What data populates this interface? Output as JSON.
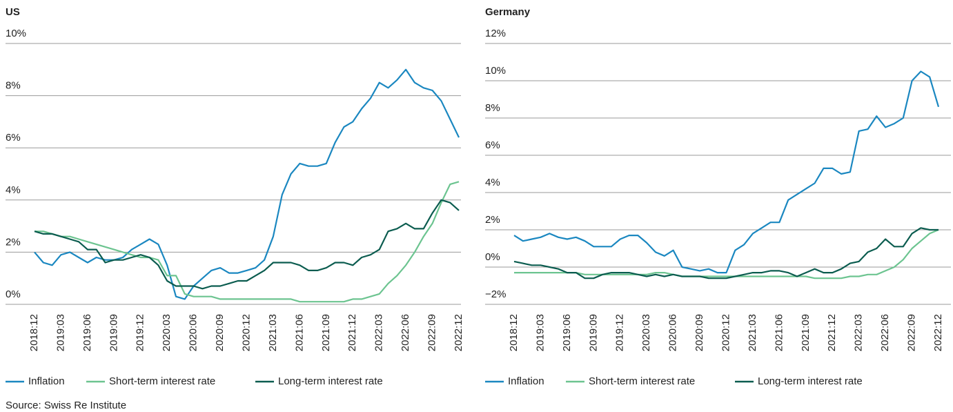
{
  "chart_data": [
    {
      "type": "line",
      "title": "US",
      "categories": [
        "2018:12",
        null,
        null,
        "2019:03",
        null,
        null,
        "2019:06",
        null,
        null,
        "2019:09",
        null,
        null,
        "2019:12",
        null,
        null,
        "2020:03",
        null,
        null,
        "2020:06",
        null,
        null,
        "2020:09",
        null,
        null,
        "2020:12",
        null,
        null,
        "2021:03",
        null,
        null,
        "2021:06",
        null,
        null,
        "2021:09",
        null,
        null,
        "2021:12",
        null,
        null,
        "2022:03",
        null,
        null,
        "2022:06",
        null,
        null,
        "2022:09",
        null,
        null,
        "2022:12"
      ],
      "ylim": [
        0,
        10
      ],
      "yticks": [
        {
          "value": 0,
          "label": "0%"
        },
        {
          "value": 2,
          "label": "2%"
        },
        {
          "value": 4,
          "label": "4%"
        },
        {
          "value": 6,
          "label": "6%"
        },
        {
          "value": 8,
          "label": "8%"
        },
        {
          "value": 10,
          "label": "10%"
        }
      ],
      "grid": true,
      "series": [
        {
          "name": "Inflation",
          "color": "#1a87c0",
          "values": [
            2.0,
            1.6,
            1.5,
            1.9,
            2.0,
            1.8,
            1.6,
            1.8,
            1.7,
            1.7,
            1.8,
            2.1,
            2.3,
            2.5,
            2.3,
            1.5,
            0.3,
            0.2,
            0.7,
            1.0,
            1.3,
            1.4,
            1.2,
            1.2,
            1.3,
            1.4,
            1.7,
            2.6,
            4.2,
            5.0,
            5.4,
            5.3,
            5.3,
            5.4,
            6.2,
            6.8,
            7.0,
            7.5,
            7.9,
            8.5,
            8.3,
            8.6,
            9.0,
            8.5,
            8.3,
            8.2,
            7.8,
            7.1,
            6.4
          ]
        },
        {
          "name": "Short-term interest rate",
          "color": "#6cc490",
          "values": [
            2.8,
            2.8,
            2.7,
            2.6,
            2.6,
            2.5,
            2.4,
            2.3,
            2.2,
            2.1,
            2.0,
            1.9,
            1.8,
            1.8,
            1.7,
            1.1,
            1.1,
            0.4,
            0.3,
            0.3,
            0.3,
            0.2,
            0.2,
            0.2,
            0.2,
            0.2,
            0.2,
            0.2,
            0.2,
            0.2,
            0.1,
            0.1,
            0.1,
            0.1,
            0.1,
            0.1,
            0.2,
            0.2,
            0.3,
            0.4,
            0.8,
            1.1,
            1.5,
            2.0,
            2.6,
            3.1,
            3.9,
            4.6,
            4.7
          ]
        },
        {
          "name": "Long-term interest rate",
          "color": "#0b5c4f",
          "values": [
            2.8,
            2.7,
            2.7,
            2.6,
            2.5,
            2.4,
            2.1,
            2.1,
            1.6,
            1.7,
            1.7,
            1.8,
            1.9,
            1.8,
            1.5,
            0.9,
            0.7,
            0.7,
            0.7,
            0.6,
            0.7,
            0.7,
            0.8,
            0.9,
            0.9,
            1.1,
            1.3,
            1.6,
            1.6,
            1.6,
            1.5,
            1.3,
            1.3,
            1.4,
            1.6,
            1.6,
            1.5,
            1.8,
            1.9,
            2.1,
            2.8,
            2.9,
            3.1,
            2.9,
            2.9,
            3.5,
            4.0,
            3.9,
            3.6
          ]
        }
      ]
    },
    {
      "type": "line",
      "title": "Germany",
      "categories": [
        "2018:12",
        null,
        null,
        "2019:03",
        null,
        null,
        "2019:06",
        null,
        null,
        "2019:09",
        null,
        null,
        "2019:12",
        null,
        null,
        "2020:03",
        null,
        null,
        "2020:06",
        null,
        null,
        "2020:09",
        null,
        null,
        "2020:12",
        null,
        null,
        "2021:03",
        null,
        null,
        "2021:06",
        null,
        null,
        "2021:09",
        null,
        null,
        "2021:12",
        null,
        null,
        "2022:03",
        null,
        null,
        "2022:06",
        null,
        null,
        "2022:09",
        null,
        null,
        "2022:12"
      ],
      "ylim": [
        -2,
        12
      ],
      "yticks": [
        {
          "value": -2,
          "label": "−2%"
        },
        {
          "value": 0,
          "label": "0%"
        },
        {
          "value": 2,
          "label": "2%"
        },
        {
          "value": 4,
          "label": "4%"
        },
        {
          "value": 6,
          "label": "6%"
        },
        {
          "value": 8,
          "label": "8%"
        },
        {
          "value": 10,
          "label": "10%"
        },
        {
          "value": 12,
          "label": "12%"
        }
      ],
      "grid": true,
      "series": [
        {
          "name": "Inflation",
          "color": "#1a87c0",
          "values": [
            1.7,
            1.4,
            1.5,
            1.6,
            1.8,
            1.6,
            1.5,
            1.6,
            1.4,
            1.1,
            1.1,
            1.1,
            1.5,
            1.7,
            1.7,
            1.3,
            0.8,
            0.6,
            0.9,
            0.0,
            -0.1,
            -0.2,
            -0.1,
            -0.3,
            -0.3,
            0.9,
            1.2,
            1.8,
            2.1,
            2.4,
            2.4,
            3.6,
            3.9,
            4.2,
            4.5,
            5.3,
            5.3,
            5.0,
            5.1,
            7.3,
            7.4,
            8.1,
            7.5,
            7.7,
            8.0,
            10.0,
            10.5,
            10.2,
            8.6
          ]
        },
        {
          "name": "Short-term interest rate",
          "color": "#6cc490",
          "values": [
            -0.3,
            -0.3,
            -0.3,
            -0.3,
            -0.3,
            -0.3,
            -0.3,
            -0.3,
            -0.4,
            -0.4,
            -0.4,
            -0.4,
            -0.4,
            -0.4,
            -0.4,
            -0.4,
            -0.3,
            -0.3,
            -0.4,
            -0.5,
            -0.5,
            -0.5,
            -0.5,
            -0.5,
            -0.5,
            -0.5,
            -0.5,
            -0.5,
            -0.5,
            -0.5,
            -0.5,
            -0.5,
            -0.5,
            -0.5,
            -0.6,
            -0.6,
            -0.6,
            -0.6,
            -0.5,
            -0.5,
            -0.4,
            -0.4,
            -0.2,
            0.0,
            0.4,
            1.0,
            1.4,
            1.8,
            2.0
          ]
        },
        {
          "name": "Long-term interest rate",
          "color": "#0b5c4f",
          "values": [
            0.3,
            0.2,
            0.1,
            0.1,
            0.0,
            -0.1,
            -0.3,
            -0.3,
            -0.6,
            -0.6,
            -0.4,
            -0.3,
            -0.3,
            -0.3,
            -0.4,
            -0.5,
            -0.4,
            -0.5,
            -0.4,
            -0.5,
            -0.5,
            -0.5,
            -0.6,
            -0.6,
            -0.6,
            -0.5,
            -0.4,
            -0.3,
            -0.3,
            -0.2,
            -0.2,
            -0.3,
            -0.5,
            -0.3,
            -0.1,
            -0.3,
            -0.3,
            -0.1,
            0.2,
            0.3,
            0.8,
            1.0,
            1.5,
            1.1,
            1.1,
            1.8,
            2.1,
            2.0,
            2.0
          ]
        }
      ]
    }
  ],
  "source": "Source: Swiss Re Institute"
}
